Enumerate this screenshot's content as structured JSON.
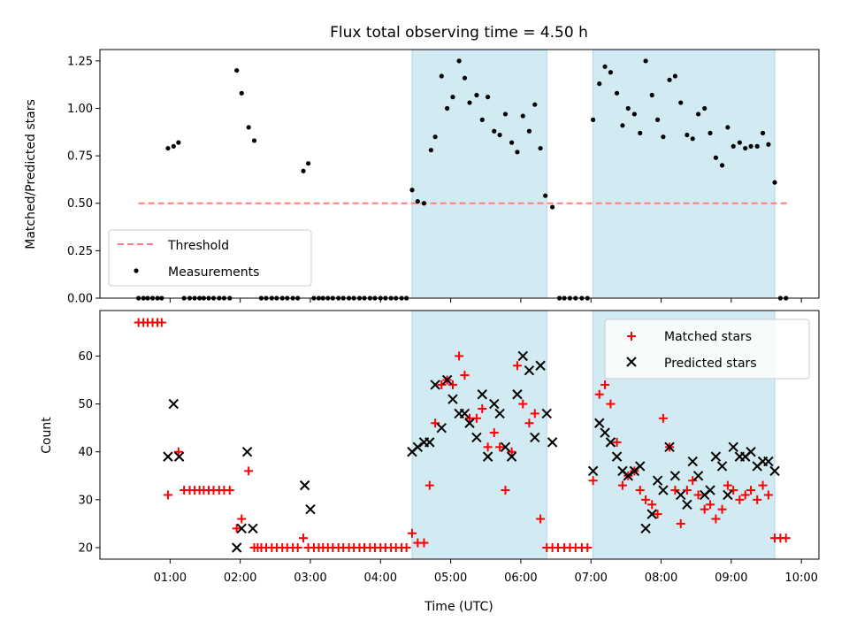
{
  "chart_data": [
    {
      "type": "scatter",
      "title": "Flux total observing time = 4.50 h",
      "ylabel": "Matched/Predicted stars",
      "xlabel": "",
      "x_unit": "hours UTC",
      "xlim": [
        0.0,
        10.25
      ],
      "ylim": [
        0.0,
        1.31
      ],
      "yticks": [
        0.0,
        0.25,
        0.5,
        0.75,
        1.0,
        1.25
      ],
      "ytick_labels": [
        "0.00",
        "0.25",
        "0.50",
        "0.75",
        "1.00",
        "1.25"
      ],
      "xticks": [
        1,
        2,
        3,
        4,
        5,
        6,
        7,
        8,
        9,
        10
      ],
      "shaded_intervals": [
        [
          4.45,
          6.37
        ],
        [
          7.03,
          9.62
        ]
      ],
      "shade_color": "#add8e6",
      "legend_position": "lower left",
      "threshold": {
        "name": "Threshold",
        "value": 0.5,
        "x_range": [
          0.55,
          9.8
        ],
        "color": "#ff7f7f"
      },
      "series": [
        {
          "name": "Measurements",
          "marker": "dot",
          "color": "#000000",
          "x": [
            0.55,
            0.62,
            0.68,
            0.75,
            0.82,
            0.88,
            0.97,
            1.05,
            1.12,
            1.2,
            1.28,
            1.35,
            1.42,
            1.48,
            1.55,
            1.62,
            1.7,
            1.77,
            1.85,
            1.95,
            2.02,
            2.12,
            2.2,
            2.3,
            2.37,
            2.45,
            2.52,
            2.6,
            2.67,
            2.75,
            2.82,
            2.9,
            2.97,
            3.05,
            3.12,
            3.18,
            3.25,
            3.32,
            3.4,
            3.47,
            3.55,
            3.62,
            3.7,
            3.77,
            3.85,
            3.92,
            4.0,
            4.07,
            4.15,
            4.22,
            4.3,
            4.37,
            4.45,
            4.53,
            4.62,
            4.72,
            4.78,
            4.87,
            4.95,
            5.03,
            5.12,
            5.2,
            5.27,
            5.37,
            5.45,
            5.53,
            5.62,
            5.7,
            5.78,
            5.87,
            5.95,
            6.03,
            6.12,
            6.2,
            6.28,
            6.35,
            6.45,
            6.55,
            6.62,
            6.7,
            6.78,
            6.87,
            6.95,
            7.03,
            7.12,
            7.2,
            7.28,
            7.37,
            7.45,
            7.53,
            7.62,
            7.7,
            7.78,
            7.87,
            7.95,
            8.03,
            8.12,
            8.2,
            8.28,
            8.37,
            8.45,
            8.53,
            8.62,
            8.7,
            8.78,
            8.87,
            8.95,
            9.03,
            9.12,
            9.2,
            9.28,
            9.37,
            9.45,
            9.53,
            9.62,
            9.7,
            9.78
          ],
          "y": [
            0.0,
            0.0,
            0.0,
            0.0,
            0.0,
            0.0,
            0.79,
            0.8,
            0.82,
            0.0,
            0.0,
            0.0,
            0.0,
            0.0,
            0.0,
            0.0,
            0.0,
            0.0,
            0.0,
            1.2,
            1.08,
            0.9,
            0.83,
            0.0,
            0.0,
            0.0,
            0.0,
            0.0,
            0.0,
            0.0,
            0.0,
            0.67,
            0.71,
            0.0,
            0.0,
            0.0,
            0.0,
            0.0,
            0.0,
            0.0,
            0.0,
            0.0,
            0.0,
            0.0,
            0.0,
            0.0,
            0.0,
            0.0,
            0.0,
            0.0,
            0.0,
            0.0,
            0.57,
            0.51,
            0.5,
            0.78,
            0.85,
            1.17,
            1.0,
            1.06,
            1.25,
            1.16,
            1.03,
            1.07,
            0.94,
            1.06,
            0.88,
            0.86,
            0.97,
            0.82,
            0.77,
            0.96,
            0.88,
            1.02,
            0.79,
            0.54,
            0.48,
            0.0,
            0.0,
            0.0,
            0.0,
            0.0,
            0.0,
            0.94,
            1.13,
            1.22,
            1.19,
            1.08,
            0.91,
            1.0,
            0.97,
            0.87,
            1.25,
            1.07,
            0.94,
            0.85,
            1.15,
            1.17,
            1.03,
            0.86,
            0.84,
            0.97,
            1.0,
            0.87,
            0.74,
            0.7,
            0.9,
            0.8,
            0.82,
            0.79,
            0.8,
            0.8,
            0.87,
            0.81,
            0.61,
            0.0,
            0.0
          ]
        }
      ]
    },
    {
      "type": "scatter",
      "title": "",
      "ylabel": "Count",
      "xlabel": "Time (UTC)",
      "x_unit": "hours UTC",
      "xlim": [
        0.0,
        10.25
      ],
      "ylim": [
        17.6,
        69.5
      ],
      "yticks": [
        20,
        30,
        40,
        50,
        60
      ],
      "ytick_labels": [
        "20",
        "30",
        "40",
        "50",
        "60"
      ],
      "xticks": [
        1,
        2,
        3,
        4,
        5,
        6,
        7,
        8,
        9,
        10
      ],
      "xtick_labels": [
        "01:00",
        "02:00",
        "03:00",
        "04:00",
        "05:00",
        "06:00",
        "07:00",
        "08:00",
        "09:00",
        "10:00"
      ],
      "shaded_intervals": [
        [
          4.45,
          6.37
        ],
        [
          7.03,
          9.62
        ]
      ],
      "shade_color": "#add8e6",
      "legend_position": "upper right",
      "series": [
        {
          "name": "Matched stars",
          "marker": "plus",
          "color": "#ff0000",
          "x": [
            0.55,
            0.62,
            0.68,
            0.75,
            0.82,
            0.88,
            0.97,
            1.12,
            1.2,
            1.28,
            1.35,
            1.42,
            1.48,
            1.55,
            1.62,
            1.7,
            1.77,
            1.85,
            1.95,
            2.02,
            2.12,
            2.2,
            2.25,
            2.3,
            2.37,
            2.45,
            2.52,
            2.6,
            2.67,
            2.75,
            2.82,
            2.9,
            2.97,
            3.05,
            3.12,
            3.18,
            3.25,
            3.32,
            3.4,
            3.47,
            3.55,
            3.62,
            3.7,
            3.77,
            3.85,
            3.92,
            4.0,
            4.07,
            4.15,
            4.22,
            4.3,
            4.37,
            4.45,
            4.53,
            4.62,
            4.7,
            4.78,
            4.87,
            4.95,
            5.03,
            5.12,
            5.2,
            5.27,
            5.37,
            5.45,
            5.53,
            5.62,
            5.7,
            5.78,
            5.87,
            5.95,
            6.03,
            6.12,
            6.2,
            6.28,
            6.37,
            6.45,
            6.53,
            6.62,
            6.7,
            6.78,
            6.87,
            6.95,
            7.03,
            7.12,
            7.2,
            7.28,
            7.37,
            7.45,
            7.53,
            7.62,
            7.7,
            7.78,
            7.87,
            7.95,
            8.03,
            8.12,
            8.2,
            8.28,
            8.37,
            8.45,
            8.53,
            8.62,
            8.7,
            8.78,
            8.87,
            8.95,
            9.03,
            9.12,
            9.2,
            9.28,
            9.37,
            9.45,
            9.53,
            9.62,
            9.7,
            9.78
          ],
          "y": [
            67,
            67,
            67,
            67,
            67,
            67,
            31,
            40,
            32,
            32,
            32,
            32,
            32,
            32,
            32,
            32,
            32,
            32,
            24,
            26,
            36,
            20,
            20,
            20,
            20,
            20,
            20,
            20,
            20,
            20,
            20,
            22,
            20,
            20,
            20,
            20,
            20,
            20,
            20,
            20,
            20,
            20,
            20,
            20,
            20,
            20,
            20,
            20,
            20,
            20,
            20,
            20,
            23,
            21,
            21,
            33,
            46,
            54,
            55,
            54,
            60,
            56,
            47,
            47,
            49,
            41,
            44,
            41,
            32,
            40,
            58,
            50,
            46,
            48,
            26,
            20,
            20,
            20,
            20,
            20,
            20,
            20,
            20,
            34,
            52,
            54,
            50,
            42,
            33,
            35,
            36,
            32,
            30,
            29,
            27,
            47,
            41,
            32,
            25,
            32,
            34,
            31,
            28,
            29,
            26,
            28,
            33,
            32,
            30,
            31,
            32,
            30,
            33,
            31,
            22,
            22,
            22
          ]
        },
        {
          "name": "Predicted stars",
          "marker": "x",
          "color": "#000000",
          "x": [
            0.97,
            1.05,
            1.13,
            1.95,
            2.02,
            2.1,
            2.18,
            2.92,
            3.0,
            4.45,
            4.53,
            4.62,
            4.7,
            4.78,
            4.87,
            4.95,
            5.03,
            5.12,
            5.2,
            5.27,
            5.37,
            5.45,
            5.53,
            5.62,
            5.7,
            5.78,
            5.87,
            5.95,
            6.03,
            6.12,
            6.2,
            6.28,
            6.37,
            6.45,
            7.03,
            7.12,
            7.2,
            7.28,
            7.37,
            7.45,
            7.53,
            7.62,
            7.7,
            7.78,
            7.87,
            7.95,
            8.03,
            8.12,
            8.2,
            8.28,
            8.37,
            8.45,
            8.53,
            8.62,
            8.7,
            8.78,
            8.87,
            8.95,
            9.03,
            9.12,
            9.2,
            9.28,
            9.37,
            9.45,
            9.53,
            9.62
          ],
          "y": [
            39,
            50,
            39,
            20,
            24,
            40,
            24,
            33,
            28,
            40,
            41,
            42,
            42,
            54,
            45,
            55,
            51,
            48,
            48,
            46,
            43,
            52,
            39,
            50,
            48,
            41,
            39,
            52,
            60,
            57,
            43,
            58,
            48,
            42,
            36,
            46,
            44,
            42,
            39,
            36,
            35,
            36,
            37,
            24,
            27,
            34,
            32,
            41,
            35,
            31,
            29,
            38,
            35,
            31,
            32,
            39,
            37,
            31,
            41,
            39,
            39,
            40,
            37,
            38,
            38,
            36
          ]
        }
      ]
    }
  ]
}
